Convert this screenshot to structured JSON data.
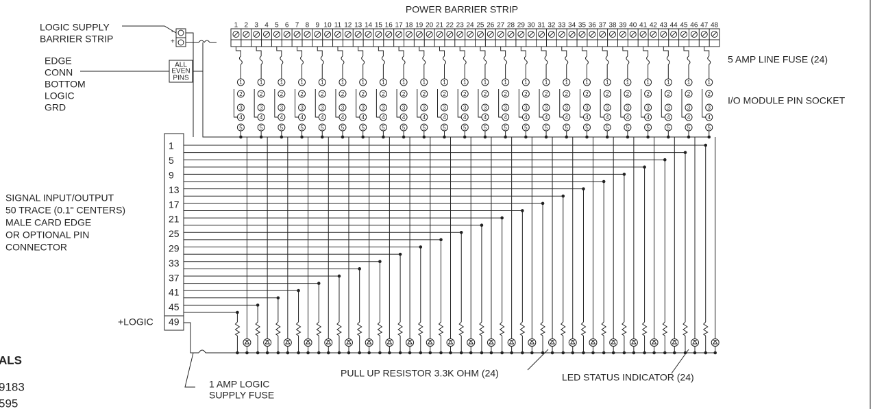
{
  "title": "POWER BARRIER STRIP",
  "left_labels": {
    "logic_supply": [
      "LOGIC SUPPLY",
      "BARRIER STRIP"
    ],
    "edge_conn": [
      "EDGE",
      "CONN",
      "BOTTOM",
      "LOGIC",
      "GRD"
    ],
    "signal": [
      "SIGNAL INPUT/OUTPUT",
      "50 TRACE (0.1\" CENTERS)",
      "MALE CARD EDGE",
      "OR OPTIONAL PIN",
      "CONNECTOR"
    ],
    "logic_plus": "+LOGIC"
  },
  "supply_terminals": [
    "-",
    "+"
  ],
  "even_pins_box": [
    "ALL",
    "EVEN",
    "PINS"
  ],
  "terminals": [
    1,
    2,
    3,
    4,
    5,
    6,
    7,
    8,
    9,
    10,
    11,
    12,
    13,
    14,
    15,
    16,
    17,
    18,
    19,
    20,
    21,
    22,
    23,
    24,
    25,
    26,
    27,
    28,
    29,
    30,
    31,
    32,
    33,
    34,
    35,
    36,
    37,
    38,
    39,
    40,
    41,
    42,
    43,
    44,
    45,
    46,
    47,
    48
  ],
  "socket_pins": [
    "1",
    "2",
    "3",
    "4",
    "5"
  ],
  "connector_pins": [
    1,
    5,
    9,
    13,
    17,
    21,
    25,
    29,
    33,
    37,
    41,
    45,
    49
  ],
  "right_labels": {
    "fuse": "5 AMP LINE FUSE (24)",
    "socket": "I/O MODULE PIN SOCKET"
  },
  "bottom_labels": {
    "logic_fuse": [
      "1 AMP LOGIC",
      "SUPPLY FUSE"
    ],
    "resistor": "PULL UP RESISTOR 3.3K OHM (24)",
    "led": "LED STATUS INDICATOR (24)"
  },
  "cut_off_text": [
    "ALS",
    "9183",
    "595"
  ]
}
